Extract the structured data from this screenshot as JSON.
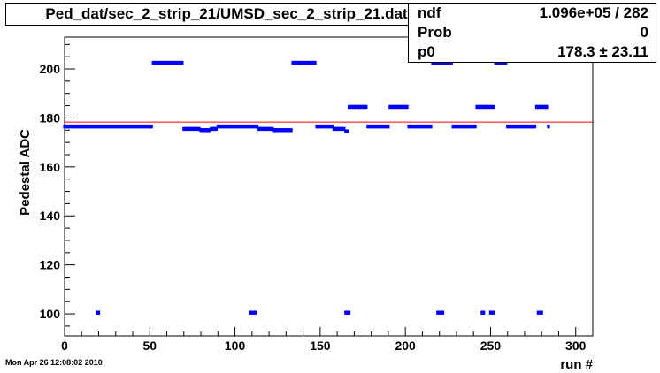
{
  "title": "Ped_dat/sec_2_strip_21/UMSD_sec_2_strip_21.dat",
  "stats": [
    {
      "key": "ndf",
      "value": "1.096e+05 / 282"
    },
    {
      "key": "Prob",
      "value": "0"
    },
    {
      "key": "p0",
      "value": "178.3 ± 23.11"
    }
  ],
  "timestamp": "Mon Apr 26 12:08:02 2010",
  "colors": {
    "points": "#0000ff",
    "fit_line": "#ff0000",
    "axis": "#000000"
  },
  "chart_data": {
    "type": "scatter",
    "title": "Ped_dat/sec_2_strip_21/UMSD_sec_2_strip_21.dat",
    "xlabel": "run #",
    "ylabel": "Pedestal ADC",
    "xlim": [
      0,
      310
    ],
    "ylim": [
      91,
      213
    ],
    "xticks": [
      0,
      50,
      100,
      150,
      200,
      250,
      300
    ],
    "yticks": [
      100,
      120,
      140,
      160,
      180,
      200
    ],
    "fit_p0": 178.3,
    "segments": [
      {
        "x0": 0,
        "x1": 51,
        "y": 176.5
      },
      {
        "x0": 52,
        "x1": 69,
        "y": 202.5
      },
      {
        "x0": 70,
        "x1": 79,
        "y": 175.5
      },
      {
        "x0": 80,
        "x1": 85,
        "y": 175
      },
      {
        "x0": 86,
        "x1": 89,
        "y": 175.5
      },
      {
        "x0": 90,
        "x1": 113,
        "y": 176.5
      },
      {
        "x0": 114,
        "x1": 122,
        "y": 175.5
      },
      {
        "x0": 123,
        "x1": 133,
        "y": 175
      },
      {
        "x0": 134,
        "x1": 147,
        "y": 202.5
      },
      {
        "x0": 148,
        "x1": 157,
        "y": 176.5
      },
      {
        "x0": 158,
        "x1": 164,
        "y": 175.5
      },
      {
        "x0": 165,
        "x1": 166,
        "y": 174.5
      },
      {
        "x0": 167,
        "x1": 177,
        "y": 184.5
      },
      {
        "x0": 178,
        "x1": 190,
        "y": 176.5
      },
      {
        "x0": 191,
        "x1": 201,
        "y": 184.5
      },
      {
        "x0": 202,
        "x1": 215,
        "y": 176.5
      },
      {
        "x0": 216,
        "x1": 223,
        "y": 202.5
      },
      {
        "x0": 224,
        "x1": 227,
        "y": 202.5
      },
      {
        "x0": 228,
        "x1": 241,
        "y": 176.5
      },
      {
        "x0": 242,
        "x1": 252,
        "y": 184.5
      },
      {
        "x0": 253,
        "x1": 259,
        "y": 202.5
      },
      {
        "x0": 260,
        "x1": 276,
        "y": 176.5
      },
      {
        "x0": 277,
        "x1": 283,
        "y": 184.5
      },
      {
        "x0": 284,
        "x1": 284,
        "y": 176.5
      }
    ],
    "outliers": [
      {
        "x0": 19,
        "x1": 20,
        "y": 100.5
      },
      {
        "x0": 109,
        "x1": 112,
        "y": 100.5
      },
      {
        "x0": 165,
        "x1": 167,
        "y": 100.5
      },
      {
        "x0": 219,
        "x1": 222,
        "y": 100.5
      },
      {
        "x0": 245,
        "x1": 246,
        "y": 100.5
      },
      {
        "x0": 250,
        "x1": 252,
        "y": 100.5
      },
      {
        "x0": 278,
        "x1": 280,
        "y": 100.5
      }
    ]
  }
}
